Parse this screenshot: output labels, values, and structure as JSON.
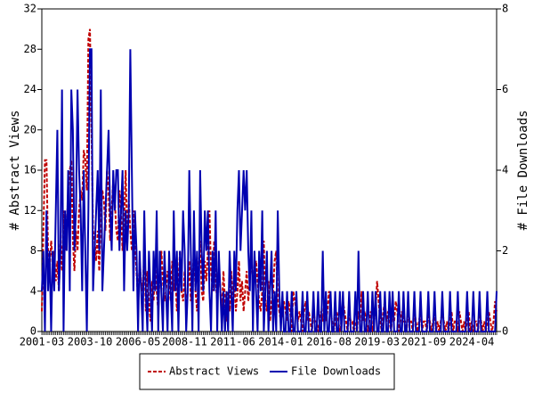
{
  "chart_data": {
    "type": "line",
    "ylabel": "# Abstract Views",
    "y2label": "# File Downloads",
    "categories": [
      "2001-03",
      "2001-04",
      "2001-05",
      "2001-06",
      "2001-07",
      "2001-08",
      "2001-09",
      "2001-10",
      "2001-11",
      "2001-12",
      "2002-01",
      "2002-02",
      "2002-03",
      "2002-04",
      "2002-05",
      "2002-06",
      "2002-07",
      "2002-08",
      "2002-09",
      "2002-10",
      "2002-11",
      "2002-12",
      "2003-01",
      "2003-02",
      "2003-03",
      "2003-04",
      "2003-05",
      "2003-06",
      "2003-07",
      "2003-08",
      "2003-09",
      "2003-10",
      "2003-11",
      "2003-12",
      "2004-01",
      "2004-02",
      "2004-03",
      "2004-04",
      "2004-05",
      "2004-06",
      "2004-07",
      "2004-08",
      "2004-09",
      "2004-10",
      "2004-11",
      "2004-12",
      "2005-01",
      "2005-02",
      "2005-03",
      "2005-04",
      "2005-05",
      "2005-06",
      "2005-07",
      "2005-08",
      "2005-09",
      "2005-10",
      "2005-11",
      "2005-12",
      "2006-01",
      "2006-02",
      "2006-03",
      "2006-04",
      "2006-05",
      "2006-06",
      "2006-07",
      "2006-08",
      "2006-09",
      "2006-10",
      "2006-11",
      "2006-12",
      "2007-01",
      "2007-02",
      "2007-03",
      "2007-04",
      "2007-05",
      "2007-06",
      "2007-07",
      "2007-08",
      "2007-09",
      "2007-10",
      "2007-11",
      "2007-12",
      "2008-01",
      "2008-02",
      "2008-03",
      "2008-04",
      "2008-05",
      "2008-06",
      "2008-07",
      "2008-08",
      "2008-09",
      "2008-10",
      "2008-11",
      "2008-12",
      "2009-01",
      "2009-02",
      "2009-03",
      "2009-04",
      "2009-05",
      "2009-06",
      "2009-07",
      "2009-08",
      "2009-09",
      "2009-10",
      "2009-11",
      "2009-12",
      "2010-01",
      "2010-02",
      "2010-03",
      "2010-04",
      "2010-05",
      "2010-06",
      "2010-07",
      "2010-08",
      "2010-09",
      "2010-10",
      "2010-11",
      "2010-12",
      "2011-01",
      "2011-02",
      "2011-03",
      "2011-04",
      "2011-05",
      "2011-06",
      "2011-07",
      "2011-08",
      "2011-09",
      "2011-10",
      "2011-11",
      "2011-12",
      "2012-01",
      "2012-02",
      "2012-03",
      "2012-04",
      "2012-05",
      "2012-06",
      "2012-07",
      "2012-08",
      "2012-09",
      "2012-10",
      "2012-11",
      "2012-12",
      "2013-01",
      "2013-02",
      "2013-03",
      "2013-04",
      "2013-05",
      "2013-06",
      "2013-07",
      "2013-08",
      "2013-09",
      "2013-10",
      "2013-11",
      "2013-12",
      "2014-01",
      "2014-02",
      "2014-03",
      "2014-04",
      "2014-05",
      "2014-06",
      "2014-07",
      "2014-08",
      "2014-09",
      "2014-10",
      "2014-11",
      "2014-12",
      "2015-01",
      "2015-02",
      "2015-03",
      "2015-04",
      "2015-05",
      "2015-06",
      "2015-07",
      "2015-08",
      "2015-09",
      "2015-10",
      "2015-11",
      "2015-12",
      "2016-01",
      "2016-02",
      "2016-03",
      "2016-04",
      "2016-05",
      "2016-06",
      "2016-07",
      "2016-08",
      "2016-09",
      "2016-10",
      "2016-11",
      "2016-12",
      "2017-01",
      "2017-02",
      "2017-03",
      "2017-04",
      "2017-05",
      "2017-06",
      "2017-07",
      "2017-08",
      "2017-09",
      "2017-10",
      "2017-11",
      "2017-12",
      "2018-01",
      "2018-02",
      "2018-03",
      "2018-04",
      "2018-05",
      "2018-06",
      "2018-07",
      "2018-08",
      "2018-09",
      "2018-10",
      "2018-11",
      "2018-12",
      "2019-01",
      "2019-02",
      "2019-03",
      "2019-04",
      "2019-05",
      "2019-06",
      "2019-07",
      "2019-08",
      "2019-09",
      "2019-10",
      "2019-11",
      "2019-12",
      "2020-01",
      "2020-02",
      "2020-03",
      "2020-04",
      "2020-05",
      "2020-06",
      "2020-07",
      "2020-08",
      "2020-09",
      "2020-10",
      "2020-11",
      "2020-12",
      "2021-01",
      "2021-02",
      "2021-03",
      "2021-04",
      "2021-05",
      "2021-06",
      "2021-07",
      "2021-08",
      "2021-09",
      "2021-10",
      "2021-11",
      "2021-12",
      "2022-01",
      "2022-02",
      "2022-03",
      "2022-04",
      "2022-05",
      "2022-06",
      "2022-07",
      "2022-08",
      "2022-09",
      "2022-10",
      "2022-11",
      "2022-12",
      "2023-01",
      "2023-02",
      "2023-03",
      "2023-04",
      "2023-05",
      "2023-06",
      "2023-07",
      "2023-08",
      "2023-09",
      "2023-10",
      "2023-11",
      "2023-12",
      "2024-01",
      "2024-02",
      "2024-03",
      "2024-04",
      "2024-05",
      "2024-06",
      "2024-07",
      "2024-08",
      "2024-09",
      "2024-10",
      "2024-11",
      "2024-12",
      "2025-01",
      "2025-02",
      "2025-03",
      "2025-04",
      "2025-05",
      "2025-06",
      "2025-07",
      "2025-08"
    ],
    "xticks": [
      "2001-03",
      "2003-10",
      "2006-05",
      "2008-11",
      "2011-06",
      "2014-01",
      "2016-08",
      "2019-03",
      "2021-09",
      "2024-04"
    ],
    "ylim": [
      0,
      32
    ],
    "yticks": [
      0,
      4,
      8,
      12,
      16,
      20,
      24,
      28,
      32
    ],
    "y2lim": [
      0,
      8
    ],
    "y2ticks": [
      0,
      2,
      4,
      6,
      8
    ],
    "grid": false,
    "legend": "bottom",
    "series": [
      {
        "name": "Abstract Views",
        "color": "#c00000",
        "dash": true,
        "values": [
          2,
          10,
          17,
          17,
          8,
          6,
          9,
          7,
          8,
          5,
          7,
          4,
          9,
          6,
          12,
          8,
          10,
          14,
          16,
          17,
          9,
          6,
          10,
          8,
          12,
          14,
          13,
          18,
          17,
          14,
          29,
          30,
          20,
          10,
          9,
          7,
          10,
          6,
          12,
          14,
          13,
          10,
          16,
          14,
          9,
          12,
          15,
          13,
          10,
          9,
          14,
          12,
          8,
          11,
          16,
          9,
          13,
          10,
          8,
          12,
          9,
          6,
          3,
          7,
          5,
          4,
          8,
          2,
          6,
          3,
          1,
          5,
          3,
          7,
          4,
          2,
          6,
          8,
          5,
          3,
          4,
          6,
          5,
          3,
          7,
          4,
          6,
          2,
          5,
          8,
          4,
          3,
          6,
          2,
          4,
          7,
          3,
          5,
          8,
          4,
          2,
          6,
          9,
          4,
          3,
          7,
          5,
          8,
          12,
          6,
          4,
          9,
          5,
          3,
          7,
          4,
          2,
          6,
          3,
          1,
          4,
          2,
          6,
          3,
          5,
          2,
          4,
          7,
          3,
          5,
          2,
          4,
          6,
          3,
          5,
          8,
          4,
          6,
          7,
          5,
          3,
          2,
          4,
          9,
          3,
          2,
          5,
          1,
          3,
          4,
          7,
          8,
          3,
          2,
          1,
          2,
          3,
          2,
          1,
          3,
          2,
          0,
          4,
          3,
          2,
          1,
          2,
          1,
          0,
          2,
          3,
          1,
          2,
          1,
          0,
          2,
          1,
          1,
          0,
          1,
          2,
          1,
          3,
          1,
          2,
          4,
          2,
          1,
          0,
          1,
          2,
          1,
          0,
          1,
          3,
          2,
          1,
          0,
          2,
          1,
          1,
          0,
          1,
          0,
          2,
          1,
          4,
          1,
          2,
          1,
          0,
          1,
          2,
          0,
          1,
          2,
          5,
          3,
          1,
          0,
          2,
          3,
          1,
          2,
          1,
          0,
          2,
          1,
          3,
          2,
          0,
          1,
          2,
          1,
          1,
          0,
          2,
          1,
          1,
          0,
          2,
          1,
          0,
          1,
          2,
          0,
          1,
          1,
          0,
          2,
          1,
          0,
          1,
          2,
          0,
          1,
          0,
          1,
          2,
          1,
          0,
          1,
          0,
          1,
          2,
          0,
          1,
          1,
          0,
          2,
          1,
          0,
          1,
          0,
          1,
          2,
          0,
          1,
          0,
          1,
          1,
          0,
          2,
          1,
          0,
          1,
          0,
          1,
          2,
          1,
          0,
          1,
          3,
          2
        ]
      },
      {
        "name": "File Downloads",
        "color": "#0000b0",
        "dash": false,
        "axis": "y2",
        "values": [
          1,
          2,
          0,
          3,
          1,
          2,
          0,
          2,
          1,
          3,
          5,
          1,
          2,
          6,
          0,
          3,
          2,
          4,
          1,
          6,
          5,
          2,
          3,
          6,
          4,
          3,
          1,
          4,
          2,
          0,
          3,
          7,
          7,
          1,
          2,
          3,
          4,
          2,
          6,
          1,
          2,
          3,
          4,
          5,
          3,
          2,
          4,
          3,
          4,
          4,
          2,
          3,
          4,
          1,
          3,
          2,
          3,
          7,
          4,
          1,
          3,
          2,
          0,
          2,
          1,
          0,
          3,
          1,
          0,
          2,
          1,
          0,
          2,
          1,
          3,
          0,
          2,
          1,
          0,
          2,
          1,
          0,
          2,
          1,
          0,
          3,
          1,
          2,
          0,
          2,
          1,
          3,
          2,
          0,
          1,
          4,
          2,
          0,
          3,
          1,
          2,
          0,
          4,
          2,
          1,
          3,
          2,
          3,
          1,
          0,
          2,
          1,
          3,
          0,
          2,
          1,
          0,
          1,
          0,
          1,
          0,
          2,
          1,
          0,
          2,
          1,
          3,
          4,
          2,
          3,
          4,
          3,
          4,
          2,
          1,
          3,
          0,
          2,
          1,
          0,
          2,
          1,
          3,
          0,
          1,
          2,
          0,
          1,
          2,
          0,
          1,
          0,
          3,
          1,
          0,
          1,
          0,
          0,
          1,
          0,
          0,
          1,
          0,
          0,
          1,
          0,
          0,
          0,
          1,
          0,
          0,
          1,
          0,
          0,
          0,
          1,
          0,
          0,
          1,
          0,
          0,
          2,
          0,
          1,
          0,
          0,
          1,
          0,
          0,
          1,
          0,
          0,
          1,
          0,
          1,
          0,
          0,
          0,
          1,
          0,
          0,
          0,
          1,
          0,
          2,
          0,
          0,
          1,
          0,
          0,
          1,
          0,
          0,
          1,
          0,
          1,
          0,
          0,
          1,
          0,
          0,
          1,
          0,
          0,
          1,
          0,
          1,
          0,
          0,
          0,
          1,
          0,
          0,
          1,
          0,
          0,
          1,
          0,
          0,
          0,
          1,
          0,
          0,
          0,
          1,
          0,
          0,
          0,
          0,
          1,
          0,
          0,
          0,
          1,
          0,
          0,
          0,
          0,
          1,
          0,
          0,
          0,
          0,
          1,
          0,
          0,
          0,
          0,
          1,
          0,
          0,
          0,
          0,
          0,
          1,
          0,
          0,
          0,
          1,
          0,
          0,
          0,
          1,
          0,
          0,
          0,
          0,
          1,
          0,
          0,
          0,
          0,
          0,
          1
        ]
      }
    ]
  }
}
